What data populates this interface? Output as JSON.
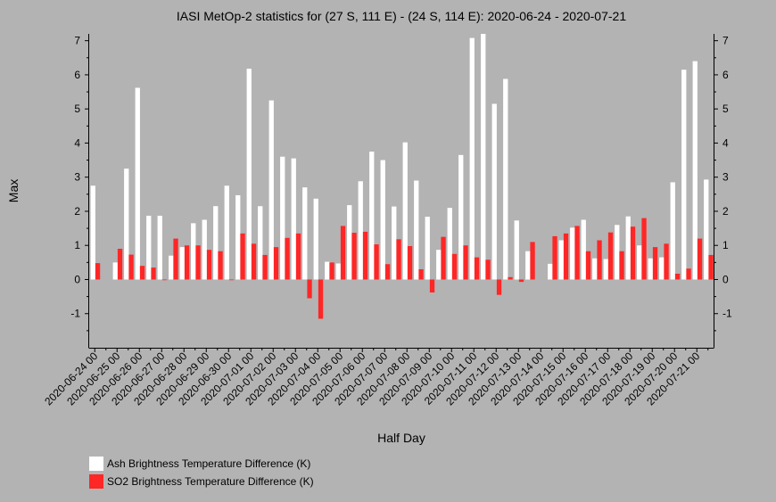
{
  "chart_data": {
    "type": "bar",
    "title": "IASI MetOp-2 statistics for (27 S, 111 E) - (24 S, 114 E): 2020-06-24 - 2020-07-21",
    "xlabel": "Half Day",
    "ylabel": "Max",
    "ylim": [
      -2,
      7.2
    ],
    "yticks": [
      -1,
      0,
      1,
      2,
      3,
      4,
      5,
      6,
      7
    ],
    "x_tick_labels": [
      "2020-06-24 00",
      "2020-06-25 00",
      "2020-06-26 00",
      "2020-06-27 00",
      "2020-06-28 00",
      "2020-06-29 00",
      "2020-06-30 00",
      "2020-07-01 00",
      "2020-07-02 00",
      "2020-07-03 00",
      "2020-07-04 00",
      "2020-07-05 00",
      "2020-07-06 00",
      "2020-07-07 00",
      "2020-07-08 00",
      "2020-07-09 00",
      "2020-07-10 00",
      "2020-07-11 00",
      "2020-07-12 00",
      "2020-07-13 00",
      "2020-07-14 00",
      "2020-07-15 00",
      "2020-07-16 00",
      "2020-07-17 00",
      "2020-07-18 00",
      "2020-07-19 00",
      "2020-07-20 00",
      "2020-07-21 00"
    ],
    "categories": [
      "2020-06-24 00",
      "2020-06-24 12",
      "2020-06-25 00",
      "2020-06-25 12",
      "2020-06-26 00",
      "2020-06-26 12",
      "2020-06-27 00",
      "2020-06-27 12",
      "2020-06-28 00",
      "2020-06-28 12",
      "2020-06-29 00",
      "2020-06-29 12",
      "2020-06-30 00",
      "2020-06-30 12",
      "2020-07-01 00",
      "2020-07-01 12",
      "2020-07-02 00",
      "2020-07-02 12",
      "2020-07-03 00",
      "2020-07-03 12",
      "2020-07-04 00",
      "2020-07-04 12",
      "2020-07-05 00",
      "2020-07-05 12",
      "2020-07-06 00",
      "2020-07-06 12",
      "2020-07-07 00",
      "2020-07-07 12",
      "2020-07-08 00",
      "2020-07-08 12",
      "2020-07-09 00",
      "2020-07-09 12",
      "2020-07-10 00",
      "2020-07-10 12",
      "2020-07-11 00",
      "2020-07-11 12",
      "2020-07-12 00",
      "2020-07-12 12",
      "2020-07-13 00",
      "2020-07-13 12",
      "2020-07-14 00",
      "2020-07-14 12",
      "2020-07-15 00",
      "2020-07-15 12",
      "2020-07-16 00",
      "2020-07-16 12",
      "2020-07-17 00",
      "2020-07-17 12",
      "2020-07-18 00",
      "2020-07-18 12",
      "2020-07-19 00",
      "2020-07-19 12",
      "2020-07-20 00",
      "2020-07-20 12",
      "2020-07-21 00",
      "2020-07-21 12"
    ],
    "series": [
      {
        "name": "Ash Brightness Temperature Difference (K)",
        "color": "#ffffff",
        "values": [
          2.75,
          null,
          0.5,
          3.25,
          5.62,
          1.87,
          1.87,
          0.7,
          0.95,
          1.65,
          1.75,
          2.15,
          2.75,
          2.47,
          6.18,
          2.15,
          5.25,
          3.6,
          3.55,
          2.7,
          2.37,
          0.52,
          0.47,
          2.18,
          2.88,
          3.75,
          3.5,
          2.14,
          4.02,
          2.9,
          1.84,
          0.87,
          2.1,
          3.65,
          7.08,
          7.2,
          5.15,
          5.88,
          1.73,
          0.83,
          null,
          0.46,
          1.15,
          1.52,
          1.75,
          0.62,
          0.6,
          1.6,
          1.85,
          1.0,
          0.62,
          0.65,
          2.85,
          6.15,
          6.4,
          2.93
        ]
      },
      {
        "name": "SO2 Brightness Temperature Difference (K)",
        "color": "#ff2626",
        "values": [
          0.48,
          null,
          0.9,
          0.73,
          0.4,
          0.35,
          -0.02,
          1.2,
          1.0,
          1.0,
          0.87,
          0.83,
          -0.02,
          1.35,
          1.05,
          0.72,
          0.95,
          1.22,
          1.35,
          -0.55,
          -1.15,
          0.5,
          1.57,
          1.37,
          1.4,
          1.03,
          0.45,
          1.18,
          0.98,
          0.3,
          -0.38,
          1.25,
          0.75,
          1.0,
          0.65,
          0.58,
          -0.45,
          0.07,
          -0.07,
          1.1,
          null,
          1.27,
          1.35,
          1.57,
          0.83,
          1.15,
          1.38,
          0.83,
          1.55,
          1.8,
          0.95,
          1.05,
          0.17,
          0.32,
          1.2,
          0.72
        ]
      }
    ],
    "legend": {
      "placement": "bottom-left",
      "items": [
        {
          "label": "Ash Brightness Temperature Difference (K)",
          "color": "#ffffff"
        },
        {
          "label": "SO2 Brightness Temperature Difference (K)",
          "color": "#ff2626"
        }
      ]
    }
  }
}
